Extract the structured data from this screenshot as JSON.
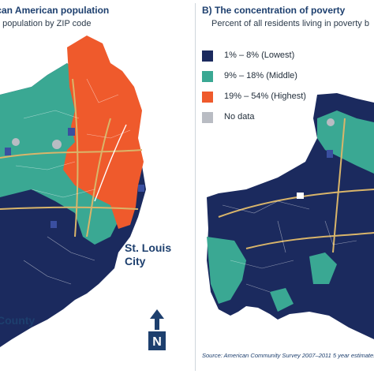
{
  "panel_a": {
    "title": "ican American population",
    "subtitle": "n population by ZIP code",
    "city_label": "St. Louis\nCity",
    "county_label": "County",
    "north_label": "N"
  },
  "panel_b": {
    "title": "B) The concentration of poverty",
    "subtitle": "Percent of all residents living in poverty b",
    "legend": [
      {
        "label": "1% – 8% (Lowest)",
        "color": "#1b2a5e"
      },
      {
        "label": "9% – 18% (Middle)",
        "color": "#3aa893"
      },
      {
        "label": "19% – 54% (Highest)",
        "color": "#ef5a2c"
      },
      {
        "label": "No data",
        "color": "#b9bcc3"
      }
    ],
    "source": "Source: American Community Survey 2007–2011 5 year estimates"
  },
  "colors": {
    "lowest": "#1b2a5e",
    "middle": "#3aa893",
    "highest": "#ef5a2c",
    "no_data": "#b9bcc3",
    "accent": "#1d3f6e"
  }
}
